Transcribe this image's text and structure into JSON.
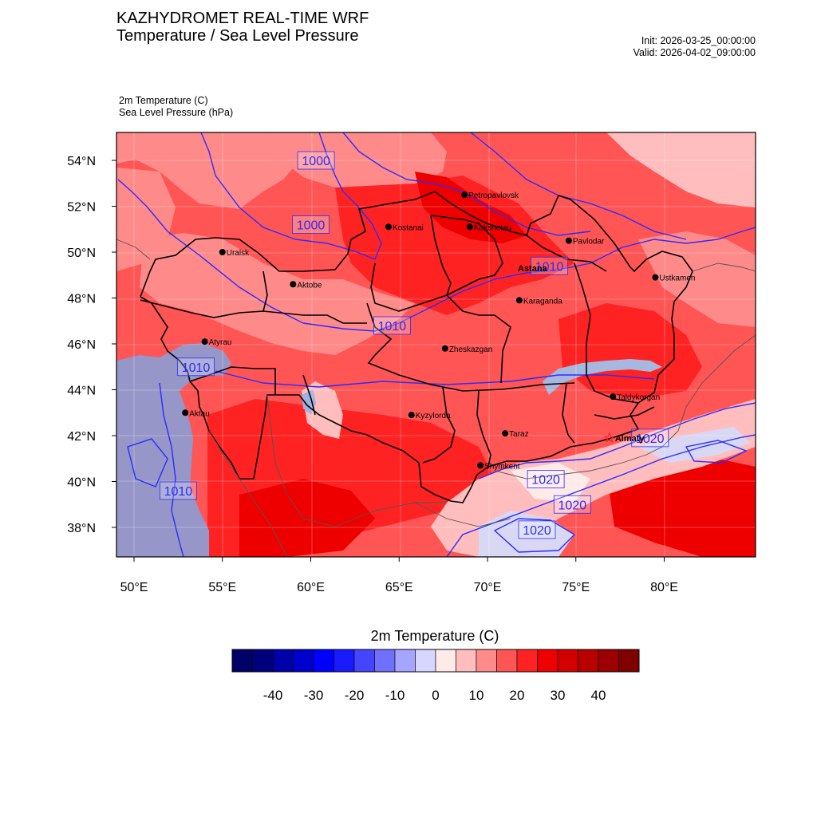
{
  "header": {
    "title_line1": "KAZHYDROMET REAL-TIME WRF",
    "title_line2": "Temperature / Sea Level Pressure",
    "init": "Init: 2026-03-25_00:00:00",
    "valid": "Valid: 2026-04-02_09:00:00"
  },
  "fields": {
    "temperature": "2m Temperature   (C)",
    "pressure": "Sea Level Pressure   (hPa)"
  },
  "map": {
    "lat_labels": [
      "54°N",
      "52°N",
      "50°N",
      "48°N",
      "46°N",
      "44°N",
      "42°N",
      "40°N",
      "38°N"
    ],
    "lat_values": [
      54,
      52,
      50,
      48,
      46,
      44,
      42,
      40,
      38
    ],
    "lon_labels": [
      "50°E",
      "55°E",
      "60°E",
      "65°E",
      "70°E",
      "75°E",
      "80°E"
    ],
    "lon_values": [
      50,
      55,
      60,
      65,
      70,
      75,
      80
    ],
    "cities": [
      {
        "name": "Petropavlovsk",
        "lon": 68.7,
        "lat": 52.5
      },
      {
        "name": "Kostanai",
        "lon": 64.4,
        "lat": 51.1
      },
      {
        "name": "Kokshetau",
        "lon": 69.0,
        "lat": 51.1
      },
      {
        "name": "Pavlodar",
        "lon": 74.6,
        "lat": 50.5
      },
      {
        "name": "Uralsk",
        "lon": 55.0,
        "lat": 50.0
      },
      {
        "name": "Aktobe",
        "lon": 59.0,
        "lat": 48.6
      },
      {
        "name": "Ustkamen",
        "lon": 79.5,
        "lat": 48.9
      },
      {
        "name": "Karaganda",
        "lon": 71.8,
        "lat": 47.9
      },
      {
        "name": "Atyrau",
        "lon": 54.0,
        "lat": 46.1
      },
      {
        "name": "Zheskazgan",
        "lon": 67.6,
        "lat": 45.8
      },
      {
        "name": "Taldykorgan",
        "lon": 77.1,
        "lat": 43.7
      },
      {
        "name": "Aktau",
        "lon": 52.9,
        "lat": 43.0
      },
      {
        "name": "Kyzylorda",
        "lon": 65.7,
        "lat": 42.9
      },
      {
        "name": "Taraz",
        "lon": 71.0,
        "lat": 42.1
      },
      {
        "name": "Shymkent",
        "lon": 69.6,
        "lat": 40.7
      }
    ],
    "capitals": [
      {
        "name": "Astana",
        "lon": 71.4,
        "lat": 49.3
      },
      {
        "name": "Almaty",
        "lon": 76.9,
        "lat": 41.9
      }
    ],
    "isobar_labels": [
      {
        "text": "1000",
        "lon": 60.3,
        "lat": 54.0
      },
      {
        "text": "1000",
        "lon": 60.0,
        "lat": 51.2
      },
      {
        "text": "1010",
        "lon": 73.5,
        "lat": 49.4
      },
      {
        "text": "1010",
        "lon": 64.6,
        "lat": 46.8
      },
      {
        "text": "1010",
        "lon": 53.5,
        "lat": 45.0
      },
      {
        "text": "1010",
        "lon": 52.5,
        "lat": 39.6
      },
      {
        "text": "1020",
        "lon": 79.2,
        "lat": 41.9
      },
      {
        "text": "1020",
        "lon": 73.3,
        "lat": 40.1
      },
      {
        "text": "1020",
        "lon": 74.8,
        "lat": 39.0
      },
      {
        "text": "1020",
        "lon": 72.8,
        "lat": 37.9
      }
    ]
  },
  "colorbar": {
    "title": "2m Temperature  (C)",
    "colors": [
      "#000066",
      "#00007f",
      "#0000aa",
      "#0000cc",
      "#0000ff",
      "#1a1aff",
      "#4545ff",
      "#7070ff",
      "#a5a5ff",
      "#d6d6ff",
      "#ffeaea",
      "#ffbdbd",
      "#ff8a8a",
      "#ff5555",
      "#ff2222",
      "#ee0000",
      "#d40000",
      "#b80000",
      "#9c0000",
      "#800000"
    ],
    "tick_labels": [
      "-40",
      "-30",
      "-20",
      "-10",
      "0",
      "10",
      "20",
      "30",
      "40"
    ]
  },
  "colors": {
    "isobar": "#2b2bff",
    "border": "#000000",
    "caspian": "#9696c8",
    "lake": "#a6b8e0",
    "mountain_cold": "#d8d8f4"
  }
}
